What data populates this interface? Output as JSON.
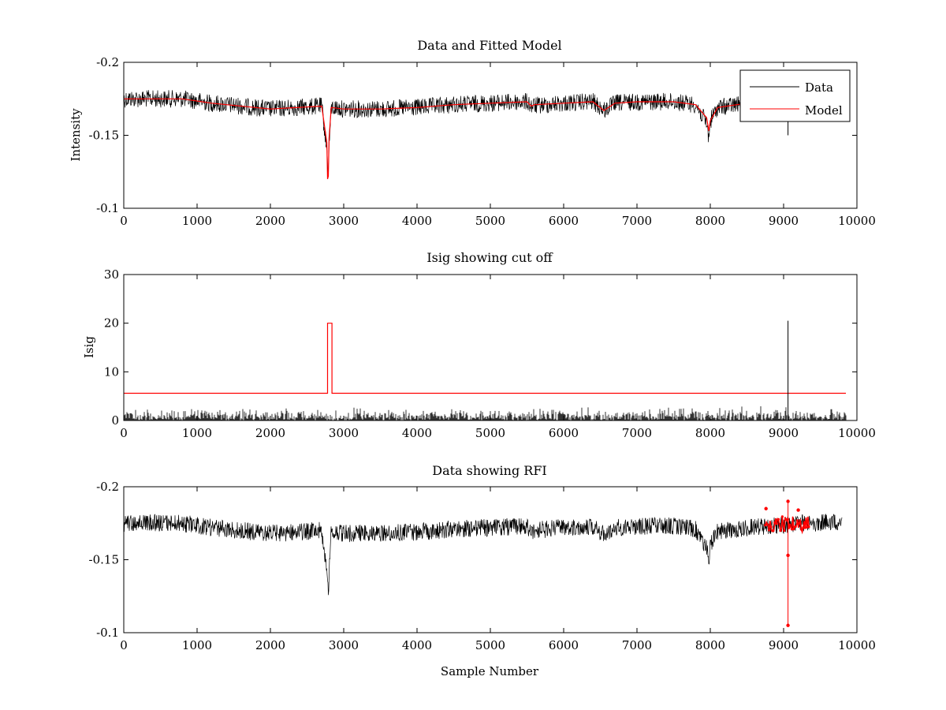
{
  "chart_data": [
    {
      "type": "line",
      "title": "Data and Fitted Model",
      "xlabel": "",
      "ylabel": "Intensity",
      "xlim": [
        0,
        10000
      ],
      "ylim": [
        -0.2,
        -0.1
      ],
      "y_reversed": true,
      "xticks": [
        0,
        1000,
        2000,
        3000,
        4000,
        5000,
        6000,
        7000,
        8000,
        9000,
        10000
      ],
      "xtick_labels": [
        "0",
        "1000",
        "2000",
        "3000",
        "4000",
        "5000",
        "6000",
        "7000",
        "8000",
        "9000",
        "10000"
      ],
      "yticks": [
        -0.1,
        -0.15,
        -0.2
      ],
      "ytick_labels": [
        "-0.1",
        "-0.15",
        "-0.2"
      ],
      "legend": {
        "position": "top-right",
        "entries": [
          {
            "label": "Data",
            "color": "#000000"
          },
          {
            "label": "Model",
            "color": "#ff0000"
          }
        ]
      },
      "series": [
        {
          "name": "Data",
          "color": "#000000",
          "style": "noisy-line",
          "noise_amplitude": 0.006,
          "x": [
            0,
            800,
            1200,
            2000,
            2700,
            2770,
            2790,
            2800,
            2830,
            3000,
            3500,
            4000,
            4500,
            5000,
            5500,
            5560,
            6000,
            6400,
            6550,
            6700,
            7000,
            7500,
            7800,
            7950,
            7980,
            8000,
            8100,
            8500,
            9000,
            9300,
            9800
          ],
          "values": [
            -0.175,
            -0.175,
            -0.172,
            -0.168,
            -0.17,
            -0.14,
            -0.125,
            -0.142,
            -0.169,
            -0.168,
            -0.168,
            -0.169,
            -0.171,
            -0.172,
            -0.173,
            -0.17,
            -0.172,
            -0.173,
            -0.167,
            -0.172,
            -0.173,
            -0.173,
            -0.171,
            -0.158,
            -0.148,
            -0.16,
            -0.169,
            -0.172,
            -0.174,
            -0.175,
            -0.176
          ]
        },
        {
          "name": "Model",
          "color": "#ff0000",
          "style": "line",
          "x": [
            0,
            800,
            1200,
            2000,
            2700,
            2770,
            2780,
            2790,
            2800,
            2830,
            3000,
            3500,
            4000,
            4500,
            5000,
            5500,
            5560,
            5600,
            6000,
            6400,
            6550,
            6700,
            7000,
            7500,
            7800,
            7950,
            7980,
            8000,
            8100,
            8500,
            9000,
            9300,
            9800
          ],
          "values": [
            -0.175,
            -0.175,
            -0.172,
            -0.168,
            -0.17,
            -0.145,
            -0.12,
            -0.122,
            -0.148,
            -0.169,
            -0.168,
            -0.168,
            -0.169,
            -0.171,
            -0.172,
            -0.173,
            -0.17,
            -0.171,
            -0.172,
            -0.173,
            -0.167,
            -0.172,
            -0.173,
            -0.173,
            -0.171,
            -0.162,
            -0.153,
            -0.16,
            -0.169,
            -0.172,
            -0.174,
            -0.175,
            -0.176
          ]
        }
      ],
      "annotations": [
        {
          "type": "vertical-spike",
          "x": 9060,
          "from": -0.17,
          "to": -0.15,
          "color": "#000000"
        },
        {
          "type": "vertical-spike",
          "x": 9060,
          "from": -0.175,
          "to": -0.19,
          "color": "#000000"
        }
      ]
    },
    {
      "type": "line",
      "title": "Isig showing cut off",
      "xlabel": "",
      "ylabel": "Isig",
      "xlim": [
        0,
        10000
      ],
      "ylim": [
        0,
        30
      ],
      "xticks": [
        0,
        1000,
        2000,
        3000,
        4000,
        5000,
        6000,
        7000,
        8000,
        9000,
        10000
      ],
      "xtick_labels": [
        "0",
        "1000",
        "2000",
        "3000",
        "4000",
        "5000",
        "6000",
        "7000",
        "8000",
        "9000",
        "10000"
      ],
      "yticks": [
        0,
        10,
        20,
        30
      ],
      "ytick_labels": [
        "0",
        "10",
        "20",
        "30"
      ],
      "series": [
        {
          "color": "#000000",
          "style": "noisy-bars",
          "noise_amplitude": 2.5,
          "x": [
            0,
            9850
          ],
          "values": [
            0,
            0
          ]
        },
        {
          "color": "#ff0000",
          "style": "line",
          "x": [
            0,
            2780,
            2780,
            2840,
            2840,
            9850
          ],
          "values": [
            5.6,
            5.6,
            20,
            20,
            5.6,
            5.6
          ]
        }
      ],
      "annotations": [
        {
          "type": "vertical-spike",
          "x": 9060,
          "from": 0,
          "to": 20.5,
          "color": "#000000"
        }
      ]
    },
    {
      "type": "scatter",
      "title": "Data showing RFI",
      "xlabel": "Sample Number",
      "ylabel": "",
      "xlim": [
        0,
        10000
      ],
      "ylim": [
        -0.2,
        -0.1
      ],
      "y_reversed": true,
      "xticks": [
        0,
        1000,
        2000,
        3000,
        4000,
        5000,
        6000,
        7000,
        8000,
        9000,
        10000
      ],
      "xtick_labels": [
        "0",
        "1000",
        "2000",
        "3000",
        "4000",
        "5000",
        "6000",
        "7000",
        "8000",
        "9000",
        "10000"
      ],
      "yticks": [
        -0.1,
        -0.15,
        -0.2
      ],
      "ytick_labels": [
        "-0.1",
        "-0.15",
        "-0.2"
      ],
      "series": [
        {
          "color": "#000000",
          "style": "noisy-line",
          "noise_amplitude": 0.006,
          "x": [
            0,
            800,
            1200,
            2000,
            2700,
            2770,
            2790,
            2800,
            2830,
            3000,
            3500,
            4000,
            4500,
            5000,
            5500,
            5560,
            6000,
            6400,
            6550,
            6700,
            7000,
            7500,
            7800,
            7950,
            7980,
            8000,
            8100,
            8500,
            9000,
            9300,
            9800
          ],
          "values": [
            -0.175,
            -0.175,
            -0.172,
            -0.168,
            -0.17,
            -0.14,
            -0.125,
            -0.142,
            -0.169,
            -0.168,
            -0.168,
            -0.169,
            -0.171,
            -0.172,
            -0.173,
            -0.17,
            -0.172,
            -0.173,
            -0.167,
            -0.172,
            -0.173,
            -0.173,
            -0.171,
            -0.158,
            -0.148,
            -0.16,
            -0.169,
            -0.172,
            -0.174,
            -0.175,
            -0.176
          ]
        },
        {
          "color": "#ff0000",
          "style": "dense-markers",
          "noise_amplitude": 0.006,
          "x": [
            8750,
            9350
          ],
          "values": [
            -0.174,
            -0.175
          ],
          "outliers": [
            {
              "x": 9060,
              "y": -0.105
            },
            {
              "x": 9060,
              "y": -0.153
            },
            {
              "x": 9060,
              "y": -0.19
            },
            {
              "x": 8760,
              "y": -0.185
            },
            {
              "x": 9200,
              "y": -0.184
            }
          ]
        }
      ]
    }
  ]
}
